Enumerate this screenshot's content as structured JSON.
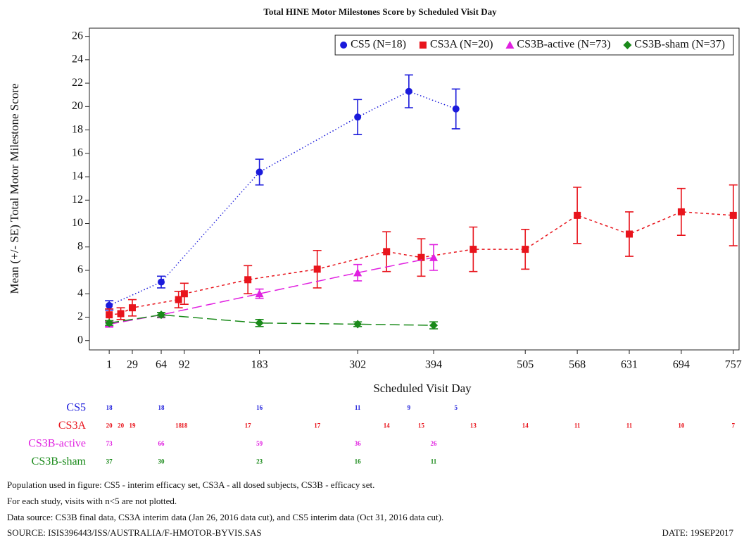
{
  "chart_data": {
    "type": "line",
    "title": "Total HINE Motor Milestones Score by Scheduled Visit Day",
    "x_label": "Scheduled Visit Day",
    "y_label": "Mean (+/- SE) Total Motor Milestone Score",
    "xlim": [
      -23,
      764
    ],
    "ylim": [
      -0.8,
      26.7
    ],
    "xticks": [
      1,
      29,
      64,
      92,
      183,
      302,
      394,
      505,
      568,
      631,
      694,
      757
    ],
    "yticks": [
      0,
      2,
      4,
      6,
      8,
      10,
      12,
      14,
      16,
      18,
      20,
      22,
      24,
      26
    ],
    "legend": "top-right",
    "series": [
      {
        "name": "CS5 (N=18)",
        "label": "CS5",
        "color": "#1a1adb",
        "marker": "circle",
        "dash": "dotted",
        "x": [
          1,
          64,
          183,
          302,
          364,
          421
        ],
        "values": [
          3.0,
          5.0,
          14.4,
          19.1,
          21.3,
          19.8
        ],
        "se": [
          0.4,
          0.5,
          1.1,
          1.5,
          1.4,
          1.7
        ],
        "n": [
          18,
          18,
          16,
          11,
          9,
          5
        ]
      },
      {
        "name": "CS3A (N=20)",
        "label": "CS3A",
        "color": "#e8141c",
        "marker": "square",
        "dash": "short",
        "x": [
          1,
          15,
          29,
          85,
          92,
          169,
          253,
          337,
          379,
          442,
          505,
          568,
          631,
          694,
          757
        ],
        "values": [
          2.2,
          2.3,
          2.8,
          3.5,
          4.0,
          5.2,
          6.1,
          7.6,
          7.1,
          7.8,
          7.8,
          10.7,
          9.1,
          11.0,
          10.7
        ],
        "se": [
          0.5,
          0.5,
          0.7,
          0.7,
          0.9,
          1.2,
          1.6,
          1.7,
          1.6,
          1.9,
          1.7,
          2.4,
          1.9,
          2.0,
          2.6
        ],
        "n": [
          20,
          20,
          19,
          18,
          18,
          17,
          17,
          14,
          15,
          13,
          14,
          11,
          11,
          10,
          7
        ]
      },
      {
        "name": "CS3B-active (N=73)",
        "label": "CS3B-active",
        "color": "#e020e0",
        "marker": "triangle",
        "dash": "long",
        "x": [
          1,
          64,
          183,
          302,
          394
        ],
        "values": [
          1.4,
          2.2,
          4.0,
          5.8,
          7.1
        ],
        "se": [
          0.2,
          0.2,
          0.4,
          0.7,
          1.1
        ],
        "n": [
          73,
          66,
          59,
          36,
          26
        ]
      },
      {
        "name": "CS3B-sham (N=37)",
        "label": "CS3B-sham",
        "color": "#1a8a1a",
        "marker": "diamond",
        "dash": "long",
        "x": [
          1,
          64,
          183,
          302,
          394
        ],
        "values": [
          1.5,
          2.2,
          1.5,
          1.4,
          1.3
        ],
        "se": [
          0.2,
          0.2,
          0.3,
          0.2,
          0.3
        ],
        "n": [
          37,
          30,
          23,
          16,
          11
        ]
      }
    ],
    "footnotes": [
      "Population used in figure: CS5 - interim efficacy set, CS3A - all dosed subjects, CS3B - efficacy set.",
      "For each study, visits with n<5 are not plotted.",
      "Data source: CS3B final data, CS3A interim data (Jan 26, 2016 data cut), and CS5 interim data (Oct 31, 2016 data cut)."
    ],
    "source": "SOURCE: ISIS396443/ISS/AUSTRALIA/F-HMOTOR-BYVIS.SAS",
    "date": "DATE: 19SEP2017"
  }
}
